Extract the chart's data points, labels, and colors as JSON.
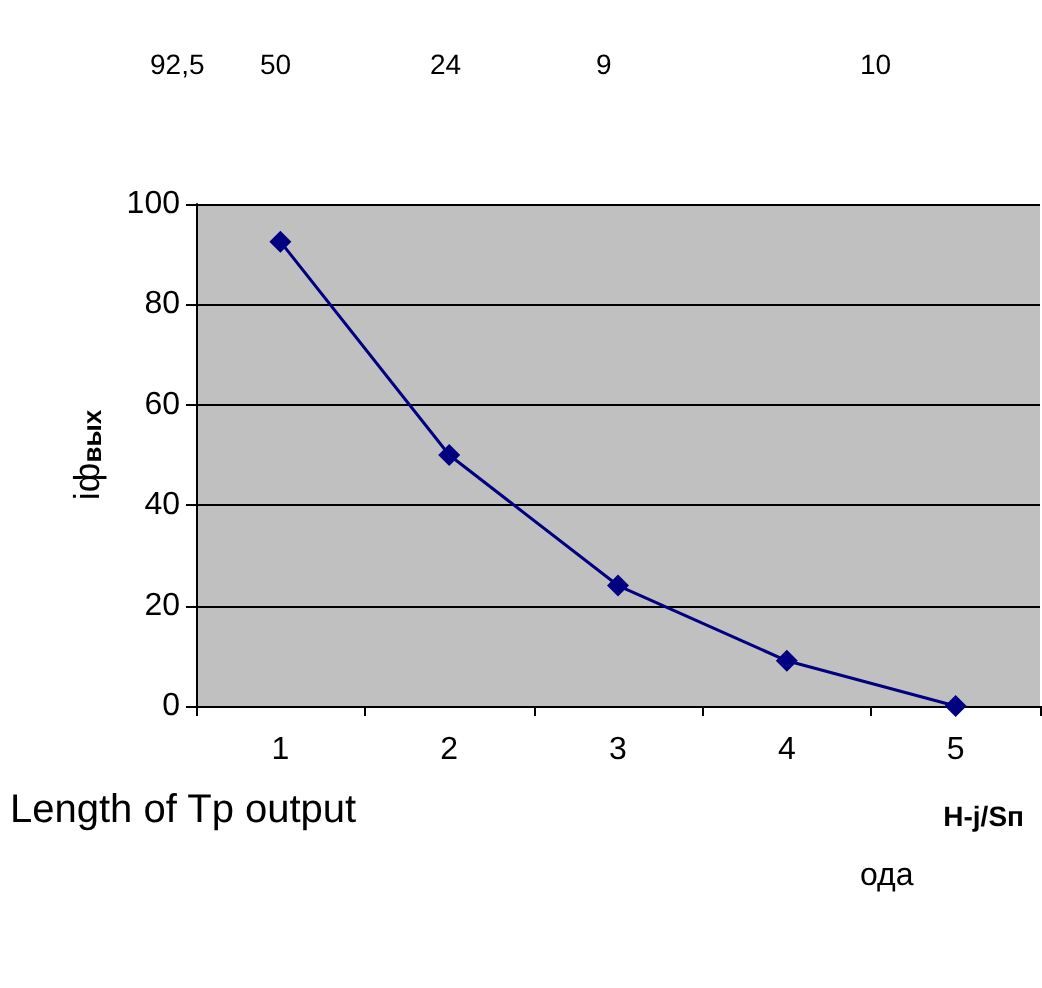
{
  "chart_data": {
    "type": "line",
    "xlabel": "H-j/Sп",
    "ylabel": "iф$_{вых}$",
    "categories": [
      "1",
      "2",
      "3",
      "4",
      "5"
    ],
    "series": [
      {
        "color": "#000080",
        "values": [
          92.5,
          50,
          24,
          9,
          0
        ]
      }
    ],
    "ylim": [
      0,
      100
    ],
    "yticks": [
      0,
      20,
      40,
      60,
      80,
      100
    ],
    "grid": "y",
    "marker": "diamond",
    "line_style": "solid",
    "annotations": [
      "92,5",
      "50",
      "24",
      "9",
      "10",
      "Length of Tp output",
      "ода"
    ]
  }
}
